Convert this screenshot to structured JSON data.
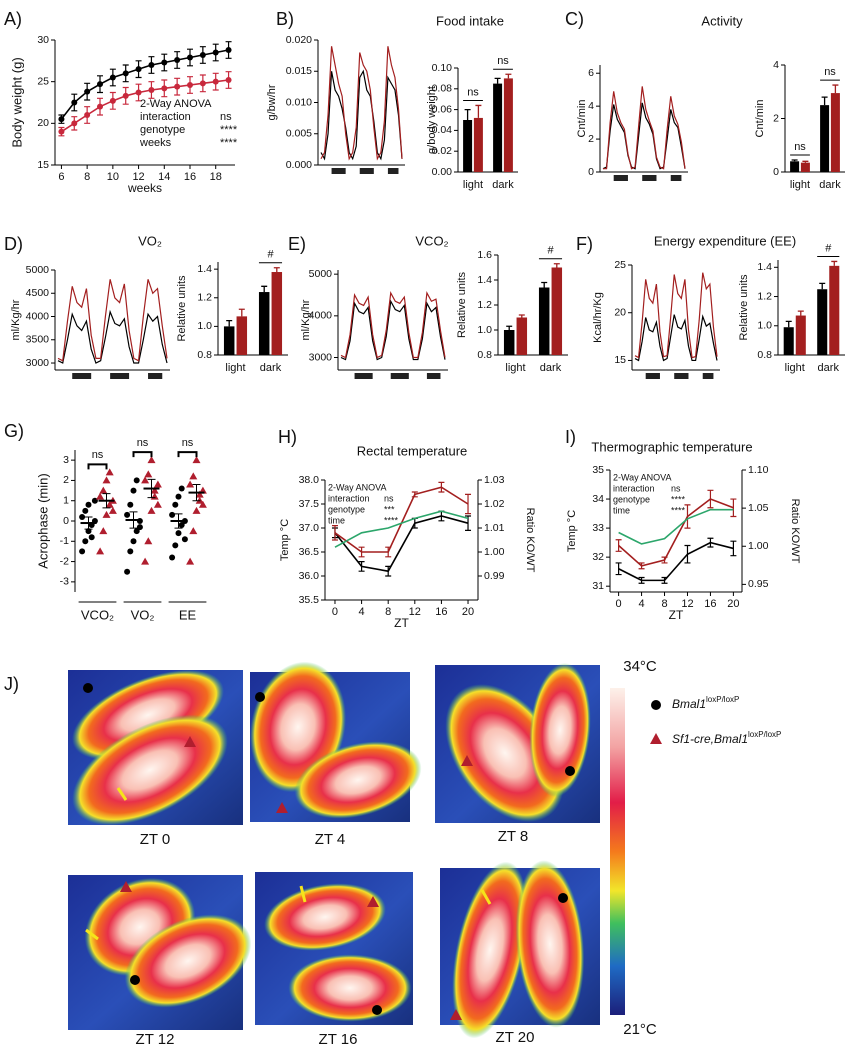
{
  "chart_data": [
    {
      "panel": "A)",
      "type": "line",
      "ylabel": "Body weight (g)",
      "xlabel": "weeks",
      "x": [
        6,
        7,
        8,
        9,
        10,
        11,
        12,
        13,
        14,
        15,
        16,
        17,
        18,
        19
      ],
      "xlim": [
        5.5,
        19.5
      ],
      "xticks": [
        6,
        8,
        10,
        12,
        14,
        16,
        18
      ],
      "ylim": [
        15,
        30
      ],
      "yticks": [
        15,
        20,
        25,
        30
      ],
      "markers": true,
      "series": [
        {
          "color": "#000000",
          "values": [
            20.5,
            22.5,
            23.8,
            24.7,
            25.5,
            26,
            26.5,
            27,
            27.3,
            27.6,
            27.9,
            28.2,
            28.5,
            28.8
          ],
          "errors": [
            0.5,
            1,
            1,
            1,
            1,
            1,
            1,
            1,
            1,
            1,
            1,
            1,
            1,
            1
          ]
        },
        {
          "color": "#c8283c",
          "values": [
            19,
            20,
            21,
            22,
            22.7,
            23.3,
            23.7,
            24,
            24.2,
            24.4,
            24.6,
            24.8,
            25,
            25.2
          ],
          "errors": [
            0.5,
            0.8,
            1,
            1,
            1,
            1,
            1,
            1,
            1,
            1,
            1,
            1,
            1,
            1
          ]
        }
      ],
      "stats": {
        "title": "2-Way ANOVA",
        "rows": [
          [
            "interaction",
            "ns"
          ],
          [
            "genotype",
            "****"
          ],
          [
            "weeks",
            "****"
          ]
        ]
      }
    },
    {
      "panel": "B)",
      "type": "line",
      "title": "Food intake",
      "ylabel": "g/bw/hr",
      "ylim": [
        0,
        0.02
      ],
      "yticks": [
        {
          "value": 0,
          "label": "0.000"
        },
        {
          "value": 0.005,
          "label": "0.005"
        },
        {
          "value": 0.01,
          "label": "0.010"
        },
        {
          "value": 0.015,
          "label": "0.015"
        },
        {
          "value": 0.02,
          "label": "0.020"
        }
      ],
      "series": [
        {
          "color": "#000000",
          "values": [
            0.002,
            0.001,
            0.005,
            0.015,
            0.012,
            0.011,
            0.009,
            0.006,
            0.002,
            0.001,
            0.003,
            0.014,
            0.015,
            0.012,
            0.011,
            0.007,
            0.002,
            0.001,
            0.004,
            0.014,
            0.013,
            0.012,
            0.008,
            0.001
          ]
        },
        {
          "color": "#a31f1f",
          "values": [
            0.001,
            0.002,
            0.008,
            0.019,
            0.016,
            0.013,
            0.011,
            0.005,
            0.001,
            0.002,
            0.006,
            0.018,
            0.016,
            0.015,
            0.012,
            0.006,
            0.001,
            0.002,
            0.007,
            0.019,
            0.016,
            0.014,
            0.009,
            0.001
          ]
        }
      ]
    },
    {
      "type": "bar",
      "ylabel": "g/body weight",
      "categories": [
        "light",
        "dark"
      ],
      "ylim": [
        0,
        0.1
      ],
      "yticks": [
        {
          "value": 0,
          "label": "0.00"
        },
        {
          "value": 0.02,
          "label": "0.02"
        },
        {
          "value": 0.04,
          "label": "0.04"
        },
        {
          "value": 0.06,
          "label": "0.06"
        },
        {
          "value": 0.08,
          "label": "0.08"
        },
        {
          "value": 0.1,
          "label": "0.10"
        }
      ],
      "series": [
        {
          "color": "#000000",
          "values": [
            0.05,
            0.085
          ],
          "errors": [
            0.01,
            0.005
          ]
        },
        {
          "color": "#a31f1f",
          "values": [
            0.052,
            0.09
          ],
          "errors": [
            0.012,
            0.004
          ]
        }
      ],
      "annotations": [
        "ns",
        "ns"
      ]
    },
    {
      "panel": "C)",
      "type": "line",
      "title": "Activity",
      "ylabel": "Cnt/min",
      "ylim": [
        0,
        6.5
      ],
      "yticks": [
        0,
        2,
        4,
        6
      ],
      "series": [
        {
          "color": "#000000",
          "values": [
            0.2,
            0.3,
            2.5,
            4.1,
            3.2,
            2.8,
            2.4,
            1.0,
            0.3,
            0.2,
            2.2,
            4.2,
            3.3,
            2.9,
            2.3,
            0.8,
            0.2,
            0.3,
            2.0,
            3.8,
            3.0,
            2.7,
            1.5,
            0.2
          ]
        },
        {
          "color": "#a31f1f",
          "values": [
            0.2,
            0.2,
            3.0,
            4.9,
            3.6,
            3.0,
            2.6,
            1.1,
            0.2,
            0.3,
            2.8,
            5.2,
            3.8,
            3.1,
            2.5,
            0.9,
            0.3,
            0.2,
            2.6,
            4.6,
            3.4,
            2.9,
            1.8,
            0.2
          ]
        }
      ]
    },
    {
      "type": "bar",
      "ylabel": "Cnt/min",
      "categories": [
        "light",
        "dark"
      ],
      "ylim": [
        0,
        4
      ],
      "yticks": [
        0,
        2,
        4
      ],
      "series": [
        {
          "color": "#000000",
          "values": [
            0.4,
            2.5
          ],
          "errors": [
            0.05,
            0.3
          ]
        },
        {
          "color": "#a31f1f",
          "values": [
            0.35,
            2.95
          ],
          "errors": [
            0.05,
            0.3
          ]
        }
      ],
      "annotations": [
        "ns",
        "ns"
      ]
    },
    {
      "panel": "D)",
      "type": "line",
      "title": "VO₂",
      "ylabel": "ml/Kg/hr",
      "ylim": [
        2850,
        5000
      ],
      "yticks": [
        3000,
        3500,
        4000,
        4500,
        5000
      ],
      "series": [
        {
          "color": "#000000",
          "values": [
            3050,
            3000,
            3500,
            4050,
            3800,
            3700,
            3900,
            3300,
            3000,
            3050,
            3550,
            4100,
            3850,
            3800,
            3950,
            3350,
            3000,
            3000,
            3500,
            4050,
            3900,
            4000,
            3400,
            3000
          ]
        },
        {
          "color": "#a31f1f",
          "values": [
            3100,
            3050,
            3900,
            4650,
            4300,
            4200,
            4600,
            3600,
            3100,
            3100,
            4000,
            4800,
            4400,
            4300,
            4700,
            3700,
            3100,
            3050,
            4000,
            4800,
            4500,
            4600,
            3800,
            3100
          ]
        }
      ]
    },
    {
      "type": "bar",
      "ylabel": "Relative units",
      "categories": [
        "light",
        "dark"
      ],
      "ylim": [
        0.8,
        1.45
      ],
      "yticks": [
        0.8,
        {
          "value": 1,
          "label": "1.0"
        },
        1.2,
        1.4
      ],
      "series": [
        {
          "color": "#000000",
          "values": [
            1.0,
            1.24
          ],
          "errors": [
            0.04,
            0.04
          ]
        },
        {
          "color": "#a31f1f",
          "values": [
            1.07,
            1.38
          ],
          "errors": [
            0.05,
            0.03
          ]
        }
      ],
      "significance": "#"
    },
    {
      "panel": "E)",
      "type": "line",
      "title": "VCO₂",
      "ylabel": "ml/Kg/hr",
      "ylim": [
        2700,
        5100
      ],
      "yticks": [
        3000,
        4000,
        5000
      ],
      "series": [
        {
          "color": "#000000",
          "values": [
            3000,
            2950,
            3400,
            4300,
            4100,
            4050,
            4200,
            3400,
            2950,
            3000,
            3500,
            4350,
            4150,
            4100,
            4250,
            3450,
            2950,
            2950,
            3450,
            4300,
            4100,
            4200,
            3500,
            2950
          ]
        },
        {
          "color": "#a31f1f",
          "values": [
            3050,
            3000,
            3550,
            4500,
            4300,
            4250,
            4450,
            3550,
            3000,
            3050,
            3650,
            4550,
            4350,
            4300,
            4450,
            3600,
            3000,
            3000,
            3600,
            4550,
            4350,
            4400,
            3650,
            3000
          ]
        }
      ]
    },
    {
      "type": "bar",
      "ylabel": "Relative units",
      "categories": [
        "light",
        "dark"
      ],
      "ylim": [
        0.8,
        1.6
      ],
      "yticks": [
        0.8,
        {
          "value": 1,
          "label": "1.0"
        },
        1.2,
        1.4,
        1.6
      ],
      "series": [
        {
          "color": "#000000",
          "values": [
            1.0,
            1.34
          ],
          "errors": [
            0.03,
            0.04
          ]
        },
        {
          "color": "#a31f1f",
          "values": [
            1.1,
            1.5
          ],
          "errors": [
            0.02,
            0.03
          ]
        }
      ],
      "significance": "#"
    },
    {
      "panel": "F)",
      "type": "line",
      "title": "Energy expenditure (EE)",
      "ylabel": "Kcal/hr/Kg",
      "ylim": [
        14,
        25
      ],
      "yticks": [
        15,
        20,
        25
      ],
      "series": [
        {
          "color": "#000000",
          "values": [
            15.2,
            15,
            17,
            19.5,
            18.2,
            18,
            19,
            16.5,
            15,
            15.2,
            17.5,
            19.8,
            18.5,
            18.3,
            19.2,
            16.5,
            15,
            15,
            17.2,
            19.6,
            18.6,
            18.9,
            16.8,
            15
          ]
        },
        {
          "color": "#a31f1f",
          "values": [
            15.5,
            15.3,
            19,
            23.5,
            21.5,
            21,
            23,
            18,
            15.4,
            15.5,
            19.5,
            24,
            22,
            21.5,
            23.5,
            18.2,
            15.3,
            15.4,
            19.2,
            24.2,
            22.5,
            23,
            18.5,
            15.4
          ]
        }
      ]
    },
    {
      "type": "bar",
      "ylabel": "Relative units",
      "categories": [
        "light",
        "dark"
      ],
      "ylim": [
        0.8,
        1.45
      ],
      "yticks": [
        0.8,
        {
          "value": 1,
          "label": "1.0"
        },
        1.2,
        1.4
      ],
      "series": [
        {
          "color": "#000000",
          "values": [
            0.99,
            1.25
          ],
          "errors": [
            0.04,
            0.04
          ]
        },
        {
          "color": "#a31f1f",
          "values": [
            1.07,
            1.41
          ],
          "errors": [
            0.03,
            0.03
          ]
        }
      ],
      "significance": "#"
    },
    {
      "panel": "G)",
      "type": "scatter",
      "ylabel": "Acrophase (min)",
      "categories": [
        "VCO₂",
        "VO₂",
        "EE"
      ],
      "ylim": [
        -3.5,
        3.5
      ],
      "yticks": [
        -3,
        -2,
        -1,
        0,
        1,
        2,
        3
      ],
      "series": [
        {
          "color": "#000000",
          "marker": "circle",
          "values": [
            [
              -1.5,
              -1,
              -0.5,
              -0.2,
              0,
              0.2,
              0.5,
              0.8,
              -0.8,
              1.0
            ],
            [
              -2.5,
              -1.5,
              -1,
              -0.5,
              0,
              0.3,
              0.8,
              1.5,
              2.0,
              -0.3
            ],
            [
              -1.8,
              -1.2,
              -0.6,
              -0.2,
              0,
              0.3,
              0.8,
              1.2,
              1.6,
              -0.9
            ]
          ],
          "means": [
            -0.1,
            0.05,
            0
          ],
          "errors": [
            0.3,
            0.4,
            0.35
          ]
        },
        {
          "color": "#b01e2e",
          "marker": "triangle",
          "values": [
            [
              -1.5,
              -0.5,
              0.3,
              0.8,
              1.0,
              1.2,
              1.5,
              2.0,
              2.4,
              0.5
            ],
            [
              -2,
              -1,
              0.5,
              1.2,
              1.8,
              2.0,
              2.3,
              3.0,
              1.5,
              0.8
            ],
            [
              -2,
              -0.5,
              0.5,
              1.0,
              1.5,
              1.8,
              2.2,
              3.0,
              1.3,
              0.8
            ]
          ],
          "means": [
            1.0,
            1.6,
            1.4
          ],
          "errors": [
            0.35,
            0.45,
            0.4
          ]
        }
      ],
      "annotations": [
        "ns",
        "ns",
        "ns"
      ]
    },
    {
      "panel": "H)",
      "type": "line",
      "title": "Rectal temperature",
      "ylabel": "Temp °C",
      "y2label": "Ratio KO/WT",
      "xlabel": "ZT",
      "x": [
        0,
        4,
        8,
        12,
        16,
        20
      ],
      "xlim": [
        -1.5,
        21.5
      ],
      "xticks": [
        0,
        4,
        8,
        12,
        16,
        20
      ],
      "ylim": [
        35.5,
        38
      ],
      "yticks": [
        35.5,
        {
          "value": 36,
          "label": "36.0"
        },
        36.5,
        {
          "value": 37,
          "label": "37.0"
        },
        37.5,
        {
          "value": 38,
          "label": "38.0"
        }
      ],
      "y2lim": [
        0.98,
        1.03
      ],
      "y2ticks": [
        0.99,
        {
          "value": 1,
          "label": "1.00"
        },
        1.01,
        1.02,
        1.03
      ],
      "series": [
        {
          "color": "#000000",
          "values": [
            36.9,
            36.2,
            36.1,
            37.1,
            37.25,
            37.1
          ],
          "errors": [
            0.1,
            0.1,
            0.1,
            0.1,
            0.1,
            0.15
          ]
        },
        {
          "color": "#a31f1f",
          "values": [
            36.9,
            36.5,
            36.5,
            37.7,
            37.85,
            37.5
          ],
          "errors": [
            0.15,
            0.1,
            0.1,
            0.05,
            0.1,
            0.2
          ]
        },
        {
          "color": "#2ca66b",
          "axis": "y2",
          "values": [
            1.002,
            1.008,
            1.01,
            1.014,
            1.017,
            1.014
          ]
        }
      ],
      "stats": {
        "title": "2-Way ANOVA",
        "rows": [
          [
            "interaction",
            "ns"
          ],
          [
            "genotype",
            "***"
          ],
          [
            "time",
            "****"
          ]
        ]
      }
    },
    {
      "panel": "I)",
      "type": "line",
      "title": "Thermographic temperature",
      "ylabel": "Temp °C",
      "y2label": "Ratio KO/WT",
      "xlabel": "ZT",
      "x": [
        0,
        4,
        8,
        12,
        16,
        20
      ],
      "xlim": [
        -1.5,
        21.5
      ],
      "xticks": [
        0,
        4,
        8,
        12,
        16,
        20
      ],
      "ylim": [
        30.8,
        35
      ],
      "yticks": [
        31,
        32,
        33,
        34,
        35
      ],
      "y2lim": [
        0.94,
        1.1
      ],
      "y2ticks": [
        0.95,
        {
          "value": 1,
          "label": "1.00"
        },
        1.05,
        {
          "value": 1.1,
          "label": "1.10"
        }
      ],
      "series": [
        {
          "color": "#000000",
          "values": [
            31.6,
            31.2,
            31.2,
            32.1,
            32.5,
            32.3
          ],
          "errors": [
            0.2,
            0.1,
            0.1,
            0.3,
            0.15,
            0.25
          ]
        },
        {
          "color": "#a31f1f",
          "values": [
            32.4,
            31.7,
            31.9,
            33.4,
            34.0,
            33.7
          ],
          "errors": [
            0.2,
            0.1,
            0.1,
            0.4,
            0.3,
            0.3
          ]
        },
        {
          "color": "#2ca66b",
          "axis": "y2",
          "values": [
            1.018,
            1.003,
            1.01,
            1.036,
            1.048,
            1.048
          ]
        }
      ],
      "stats": {
        "title": "2-Way ANOVA",
        "rows": [
          [
            "interaction",
            "ns"
          ],
          [
            "genotype",
            "****"
          ],
          [
            "time",
            "****"
          ]
        ]
      }
    }
  ],
  "thermal_images": {
    "panel": "J)",
    "images": [
      {
        "label": "ZT 0"
      },
      {
        "label": "ZT 4"
      },
      {
        "label": "ZT 8"
      },
      {
        "label": "ZT 12"
      },
      {
        "label": "ZT 16"
      },
      {
        "label": "ZT 20"
      }
    ],
    "colorbar": {
      "max_label": "34°C",
      "min_label": "21°C"
    },
    "legend": [
      {
        "name": "Bmal1",
        "sup": "loxP/loxP"
      },
      {
        "name": "Sf1-cre,Bmal1",
        "sup": "loxP/loxP"
      }
    ]
  }
}
